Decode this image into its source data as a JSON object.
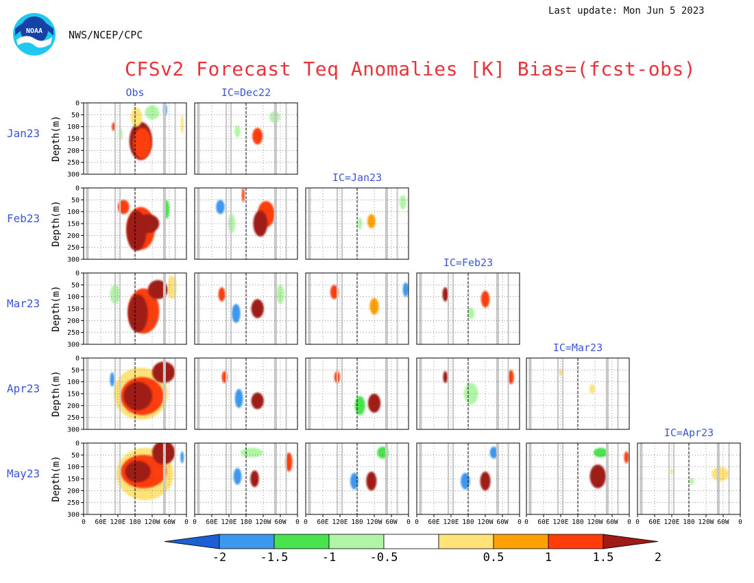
{
  "header": {
    "last_update": "Last update: Mon Jun 5 2023",
    "org": "NWS/NCEP/CPC",
    "title": "CFSv2 Forecast Teq Anomalies [K] Bias=(fcst-obs)",
    "logo_text": "NOAA"
  },
  "chart_data": {
    "type": "heatmap",
    "title": "CFSv2 Forecast Teq Anomalies [K] Bias=(fcst-obs)",
    "ylabel": "Depth(m)",
    "xlabel": "",
    "ylim": [
      300,
      0
    ],
    "y_ticks": [
      "0",
      "50",
      "100",
      "150",
      "200",
      "250",
      "300"
    ],
    "x_ticks": [
      "0",
      "60E",
      "120E",
      "180",
      "120W",
      "60W",
      "0"
    ],
    "columns": [
      "Obs",
      "IC=Dec22",
      "IC=Jan23",
      "IC=Feb23",
      "IC=Mar23",
      "IC=Apr23"
    ],
    "rows": [
      "Jan23",
      "Feb23",
      "Mar23",
      "Apr23",
      "May23"
    ],
    "colorbar": {
      "ticks": [
        "-2",
        "-1.5",
        "-1",
        "-0.5",
        "0.5",
        "1",
        "1.5",
        "2"
      ],
      "bins": [
        {
          "range": "< -2",
          "color": "#1b5fd3"
        },
        {
          "range": "-2 to -1.5",
          "color": "#3c97ee"
        },
        {
          "range": "-1.5 to -1",
          "color": "#48e34e"
        },
        {
          "range": "-1 to -0.5",
          "color": "#b0f5a5"
        },
        {
          "range": "-0.5 to 0.5",
          "color": "#ffffff"
        },
        {
          "range": "0.5 to 1",
          "color": "#ffe278"
        },
        {
          "range": "1 to 1.5",
          "color": "#ffa005"
        },
        {
          "range": "1.5 to 2",
          "color": "#ff3c0a"
        },
        {
          "range": "> 2",
          "color": "#a01a18"
        }
      ]
    },
    "panels": [
      {
        "row": "Jan23",
        "column": "Obs",
        "blobs": [
          {
            "lon": 200,
            "depth": 160,
            "value": 2.5,
            "rx": 40,
            "ry": 80
          },
          {
            "lon": 205,
            "depth": 170,
            "value": 1.7,
            "rx": 32,
            "ry": 65
          },
          {
            "lon": 185,
            "depth": 60,
            "value": 0.7,
            "rx": 20,
            "ry": 40
          },
          {
            "lon": 240,
            "depth": 40,
            "value": -0.7,
            "rx": 25,
            "ry": 30
          },
          {
            "lon": 285,
            "depth": 30,
            "value": -1.7,
            "rx": 7,
            "ry": 25
          },
          {
            "lon": 105,
            "depth": 100,
            "value": 1.7,
            "rx": 6,
            "ry": 18
          },
          {
            "lon": 130,
            "depth": 130,
            "value": -0.8,
            "rx": 6,
            "ry": 25
          },
          {
            "lon": 345,
            "depth": 90,
            "value": 0.7,
            "rx": 5,
            "ry": 40
          }
        ]
      },
      {
        "row": "Jan23",
        "column": "IC=Dec22",
        "blobs": [
          {
            "lon": 220,
            "depth": 140,
            "value": 1.7,
            "rx": 18,
            "ry": 35
          },
          {
            "lon": 150,
            "depth": 120,
            "value": -0.7,
            "rx": 10,
            "ry": 25
          },
          {
            "lon": 280,
            "depth": 60,
            "value": -0.7,
            "rx": 18,
            "ry": 25
          }
        ]
      },
      {
        "row": "Feb23",
        "column": "Obs",
        "blobs": [
          {
            "lon": 185,
            "depth": 180,
            "value": 2.4,
            "rx": 35,
            "ry": 85
          },
          {
            "lon": 225,
            "depth": 150,
            "value": 2.3,
            "rx": 40,
            "ry": 40
          },
          {
            "lon": 200,
            "depth": 170,
            "value": 1.7,
            "rx": 50,
            "ry": 90
          },
          {
            "lon": 140,
            "depth": 80,
            "value": 1.6,
            "rx": 20,
            "ry": 30
          },
          {
            "lon": 290,
            "depth": 90,
            "value": -1.2,
            "rx": 10,
            "ry": 40
          }
        ]
      },
      {
        "row": "Feb23",
        "column": "IC=Dec22",
        "blobs": [
          {
            "lon": 230,
            "depth": 150,
            "value": 2.3,
            "rx": 25,
            "ry": 55
          },
          {
            "lon": 250,
            "depth": 110,
            "value": 1.7,
            "rx": 30,
            "ry": 55
          },
          {
            "lon": 90,
            "depth": 80,
            "value": -1.7,
            "rx": 15,
            "ry": 30
          },
          {
            "lon": 170,
            "depth": 30,
            "value": 1.7,
            "rx": 5,
            "ry": 30
          },
          {
            "lon": 130,
            "depth": 150,
            "value": -0.7,
            "rx": 12,
            "ry": 40
          }
        ]
      },
      {
        "row": "Feb23",
        "column": "IC=Jan23",
        "blobs": [
          {
            "lon": 230,
            "depth": 140,
            "value": 1.2,
            "rx": 14,
            "ry": 30
          },
          {
            "lon": 190,
            "depth": 150,
            "value": -0.8,
            "rx": 8,
            "ry": 25
          },
          {
            "lon": 340,
            "depth": 60,
            "value": -0.7,
            "rx": 12,
            "ry": 30
          }
        ]
      },
      {
        "row": "Mar23",
        "column": "Obs",
        "blobs": [
          {
            "lon": 190,
            "depth": 170,
            "value": 2.5,
            "rx": 35,
            "ry": 80
          },
          {
            "lon": 260,
            "depth": 70,
            "value": 2.2,
            "rx": 35,
            "ry": 40
          },
          {
            "lon": 210,
            "depth": 160,
            "value": 1.6,
            "rx": 55,
            "ry": 95
          },
          {
            "lon": 110,
            "depth": 90,
            "value": -0.7,
            "rx": 18,
            "ry": 40
          },
          {
            "lon": 310,
            "depth": 60,
            "value": 0.8,
            "rx": 15,
            "ry": 50
          }
        ]
      },
      {
        "row": "Mar23",
        "column": "IC=Dec22",
        "blobs": [
          {
            "lon": 220,
            "depth": 150,
            "value": 2.3,
            "rx": 22,
            "ry": 40
          },
          {
            "lon": 145,
            "depth": 170,
            "value": -1.7,
            "rx": 15,
            "ry": 40
          },
          {
            "lon": 95,
            "depth": 90,
            "value": 1.6,
            "rx": 12,
            "ry": 30
          },
          {
            "lon": 300,
            "depth": 90,
            "value": -0.7,
            "rx": 14,
            "ry": 40
          }
        ]
      },
      {
        "row": "Mar23",
        "column": "IC=Jan23",
        "blobs": [
          {
            "lon": 240,
            "depth": 140,
            "value": 1.2,
            "rx": 16,
            "ry": 35
          },
          {
            "lon": 100,
            "depth": 80,
            "value": 1.7,
            "rx": 14,
            "ry": 30
          },
          {
            "lon": 350,
            "depth": 70,
            "value": -1.7,
            "rx": 10,
            "ry": 30
          }
        ]
      },
      {
        "row": "Mar23",
        "column": "IC=Feb23",
        "blobs": [
          {
            "lon": 100,
            "depth": 90,
            "value": 2.3,
            "rx": 10,
            "ry": 30
          },
          {
            "lon": 240,
            "depth": 110,
            "value": 1.6,
            "rx": 15,
            "ry": 35
          },
          {
            "lon": 190,
            "depth": 170,
            "value": -0.8,
            "rx": 12,
            "ry": 25
          }
        ]
      },
      {
        "row": "Apr23",
        "column": "Obs",
        "blobs": [
          {
            "lon": 190,
            "depth": 160,
            "value": 2.5,
            "rx": 50,
            "ry": 60
          },
          {
            "lon": 280,
            "depth": 60,
            "value": 2.4,
            "rx": 40,
            "ry": 45
          },
          {
            "lon": 205,
            "depth": 160,
            "value": 1.7,
            "rx": 75,
            "ry": 80
          },
          {
            "lon": 200,
            "depth": 150,
            "value": 0.8,
            "rx": 95,
            "ry": 110
          },
          {
            "lon": 100,
            "depth": 90,
            "value": -1.7,
            "rx": 8,
            "ry": 30
          }
        ]
      },
      {
        "row": "Apr23",
        "column": "IC=Dec22",
        "blobs": [
          {
            "lon": 220,
            "depth": 180,
            "value": 2.3,
            "rx": 22,
            "ry": 35
          },
          {
            "lon": 155,
            "depth": 170,
            "value": -1.8,
            "rx": 14,
            "ry": 40
          },
          {
            "lon": 105,
            "depth": 80,
            "value": 1.7,
            "rx": 10,
            "ry": 25
          }
        ]
      },
      {
        "row": "Apr23",
        "column": "IC=Jan23",
        "blobs": [
          {
            "lon": 240,
            "depth": 190,
            "value": 2.3,
            "rx": 22,
            "ry": 40
          },
          {
            "lon": 190,
            "depth": 200,
            "value": -1.2,
            "rx": 18,
            "ry": 40
          },
          {
            "lon": 110,
            "depth": 80,
            "value": 1.7,
            "rx": 10,
            "ry": 25
          }
        ]
      },
      {
        "row": "Apr23",
        "column": "IC=Feb23",
        "blobs": [
          {
            "lon": 190,
            "depth": 150,
            "value": -0.8,
            "rx": 25,
            "ry": 45
          },
          {
            "lon": 100,
            "depth": 80,
            "value": 2.2,
            "rx": 8,
            "ry": 25
          },
          {
            "lon": 330,
            "depth": 80,
            "value": 1.6,
            "rx": 10,
            "ry": 30
          }
        ]
      },
      {
        "row": "Apr23",
        "column": "IC=Mar23",
        "blobs": [
          {
            "lon": 230,
            "depth": 130,
            "value": 0.7,
            "rx": 10,
            "ry": 20
          },
          {
            "lon": 120,
            "depth": 60,
            "value": 0.7,
            "rx": 6,
            "ry": 15
          }
        ]
      },
      {
        "row": "May23",
        "column": "Obs",
        "blobs": [
          {
            "lon": 190,
            "depth": 120,
            "value": 2.5,
            "rx": 45,
            "ry": 45
          },
          {
            "lon": 280,
            "depth": 40,
            "value": 2.5,
            "rx": 40,
            "ry": 50
          },
          {
            "lon": 210,
            "depth": 120,
            "value": 1.7,
            "rx": 80,
            "ry": 70
          },
          {
            "lon": 215,
            "depth": 130,
            "value": 0.8,
            "rx": 100,
            "ry": 110
          },
          {
            "lon": 345,
            "depth": 60,
            "value": -1.7,
            "rx": 6,
            "ry": 25
          }
        ]
      },
      {
        "row": "May23",
        "column": "IC=Dec22",
        "blobs": [
          {
            "lon": 210,
            "depth": 150,
            "value": 2.2,
            "rx": 15,
            "ry": 35
          },
          {
            "lon": 150,
            "depth": 140,
            "value": -1.8,
            "rx": 14,
            "ry": 35
          },
          {
            "lon": 330,
            "depth": 80,
            "value": 1.6,
            "rx": 12,
            "ry": 40
          },
          {
            "lon": 200,
            "depth": 40,
            "value": -0.7,
            "rx": 40,
            "ry": 20
          }
        ]
      },
      {
        "row": "May23",
        "column": "IC=Jan23",
        "blobs": [
          {
            "lon": 230,
            "depth": 160,
            "value": 2.3,
            "rx": 18,
            "ry": 40
          },
          {
            "lon": 170,
            "depth": 160,
            "value": -1.8,
            "rx": 14,
            "ry": 35
          },
          {
            "lon": 270,
            "depth": 40,
            "value": -1.2,
            "rx": 20,
            "ry": 25
          }
        ]
      },
      {
        "row": "May23",
        "column": "IC=Feb23",
        "blobs": [
          {
            "lon": 240,
            "depth": 160,
            "value": 2.3,
            "rx": 18,
            "ry": 40
          },
          {
            "lon": 170,
            "depth": 160,
            "value": -1.8,
            "rx": 16,
            "ry": 35
          },
          {
            "lon": 270,
            "depth": 40,
            "value": -1.7,
            "rx": 14,
            "ry": 25
          }
        ]
      },
      {
        "row": "May23",
        "column": "IC=Mar23",
        "blobs": [
          {
            "lon": 250,
            "depth": 140,
            "value": 2.2,
            "rx": 28,
            "ry": 50
          },
          {
            "lon": 260,
            "depth": 40,
            "value": -1.2,
            "rx": 25,
            "ry": 20
          },
          {
            "lon": 350,
            "depth": 60,
            "value": 1.6,
            "rx": 8,
            "ry": 25
          }
        ]
      },
      {
        "row": "May23",
        "column": "IC=Apr23",
        "blobs": [
          {
            "lon": 290,
            "depth": 130,
            "value": 0.7,
            "rx": 30,
            "ry": 30
          },
          {
            "lon": 190,
            "depth": 160,
            "value": -0.7,
            "rx": 8,
            "ry": 15
          },
          {
            "lon": 120,
            "depth": 120,
            "value": 0.7,
            "rx": 5,
            "ry": 10
          }
        ]
      }
    ]
  }
}
